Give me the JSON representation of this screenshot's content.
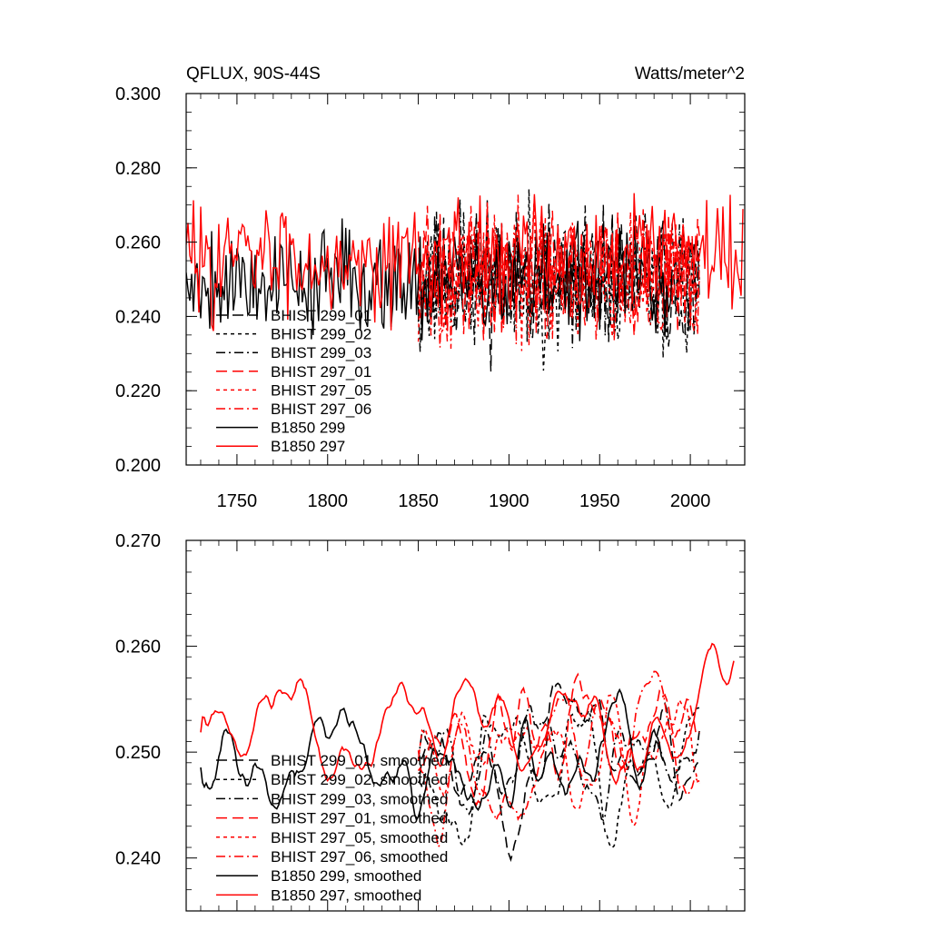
{
  "colors": {
    "black": "#000000",
    "red": "#ff0000"
  },
  "chart_data": [
    {
      "type": "line",
      "title_left": "QFLUX, 90S-44S",
      "title_right": "Watts/meter^2",
      "xlim": [
        1722,
        2030
      ],
      "ylim": [
        0.2,
        0.3
      ],
      "yticks": [
        "0.300",
        "0.280",
        "0.260",
        "0.240",
        "0.220",
        "0.200"
      ],
      "ytick_values": [
        0.3,
        0.28,
        0.26,
        0.24,
        0.22,
        0.2
      ],
      "xticks": [
        "1750",
        "1800",
        "1850",
        "1900",
        "1950",
        "2000"
      ],
      "xtick_values": [
        1750,
        1800,
        1850,
        1900,
        1950,
        2000
      ],
      "grid": false,
      "legend_position": "lower-left",
      "series": [
        {
          "name": "BHIST 299_01",
          "color": "black",
          "dash": "long-dash",
          "x_start": 1850,
          "x_end": 2005,
          "mean": 0.25,
          "amp": 0.016,
          "seed": 11
        },
        {
          "name": "BHIST 299_02",
          "color": "black",
          "dash": "short-dash",
          "x_start": 1850,
          "x_end": 2005,
          "mean": 0.249,
          "amp": 0.016,
          "seed": 23
        },
        {
          "name": "BHIST 299_03",
          "color": "black",
          "dash": "dash-dot",
          "x_start": 1850,
          "x_end": 2005,
          "mean": 0.251,
          "amp": 0.016,
          "seed": 37
        },
        {
          "name": "BHIST 297_01",
          "color": "red",
          "dash": "long-dash",
          "x_start": 1850,
          "x_end": 2005,
          "mean": 0.252,
          "amp": 0.015,
          "seed": 41
        },
        {
          "name": "BHIST 297_05",
          "color": "red",
          "dash": "short-dash",
          "x_start": 1850,
          "x_end": 2005,
          "mean": 0.251,
          "amp": 0.015,
          "seed": 53
        },
        {
          "name": "BHIST 297_06",
          "color": "red",
          "dash": "dash-dot",
          "x_start": 1850,
          "x_end": 2005,
          "mean": 0.25,
          "amp": 0.015,
          "seed": 67
        },
        {
          "name": "B1850 299",
          "color": "black",
          "dash": "solid",
          "x_start": 1722,
          "x_end": 1990,
          "mean": 0.25,
          "amp": 0.013,
          "seed": 79
        },
        {
          "name": "B1850 297",
          "color": "red",
          "dash": "solid",
          "x_start": 1722,
          "x_end": 2029,
          "mean": 0.256,
          "amp": 0.013,
          "seed": 83
        }
      ]
    },
    {
      "type": "line",
      "xlim": [
        1722,
        2030
      ],
      "ylim": [
        0.235,
        0.27
      ],
      "yticks": [
        "0.270",
        "0.260",
        "0.250",
        "0.240"
      ],
      "ytick_values": [
        0.27,
        0.26,
        0.25,
        0.24
      ],
      "xticks": [],
      "xtick_values": [
        1750,
        1800,
        1850,
        1900,
        1950,
        2000
      ],
      "grid": false,
      "legend_position": "lower-left",
      "series": [
        {
          "name": "BHIST 299_01, smoothed",
          "color": "black",
          "dash": "long-dash",
          "x_start": 1850,
          "x_end": 2005,
          "mean": 0.25,
          "amp": 0.006,
          "seed": 101
        },
        {
          "name": "BHIST 299_02, smoothed",
          "color": "black",
          "dash": "short-dash",
          "x_start": 1850,
          "x_end": 2005,
          "mean": 0.249,
          "amp": 0.006,
          "seed": 113
        },
        {
          "name": "BHIST 299_03, smoothed",
          "color": "black",
          "dash": "dash-dot",
          "x_start": 1850,
          "x_end": 2005,
          "mean": 0.251,
          "amp": 0.006,
          "seed": 127
        },
        {
          "name": "BHIST 297_01, smoothed",
          "color": "red",
          "dash": "long-dash",
          "x_start": 1850,
          "x_end": 2005,
          "mean": 0.252,
          "amp": 0.006,
          "seed": 131
        },
        {
          "name": "BHIST 297_05, smoothed",
          "color": "red",
          "dash": "short-dash",
          "x_start": 1850,
          "x_end": 2005,
          "mean": 0.251,
          "amp": 0.006,
          "seed": 149
        },
        {
          "name": "BHIST 297_06, smoothed",
          "color": "red",
          "dash": "dash-dot",
          "x_start": 1850,
          "x_end": 2005,
          "mean": 0.25,
          "amp": 0.006,
          "seed": 157
        },
        {
          "name": "B1850 299, smoothed",
          "color": "black",
          "dash": "solid",
          "x_start": 1730,
          "x_end": 1985,
          "mean": 0.25,
          "amp": 0.005,
          "seed": 163
        },
        {
          "name": "B1850 297, smoothed",
          "color": "red",
          "dash": "solid",
          "x_start": 1730,
          "x_end": 2024,
          "mean": 0.253,
          "amp": 0.004,
          "seed": 173
        }
      ]
    }
  ]
}
